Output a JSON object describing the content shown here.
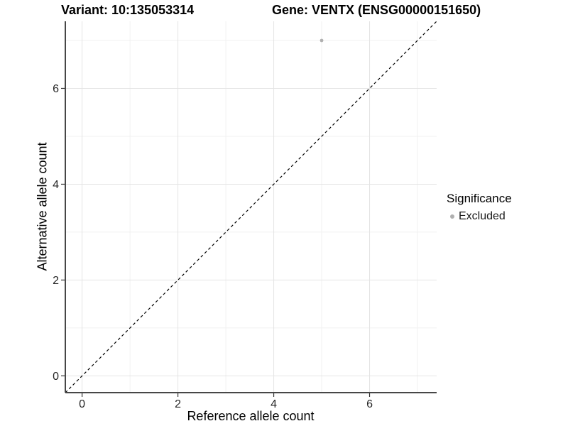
{
  "page": {
    "background": "#ffffff"
  },
  "chart_data": {
    "type": "scatter",
    "title_left": "Variant: 10:135053314",
    "title_right": "Gene: VENTX (ENSG00000151650)",
    "xlabel": "Reference allele count",
    "ylabel": "Alternative allele count",
    "xlim": [
      -0.35,
      7.4
    ],
    "ylim": [
      -0.35,
      7.4
    ],
    "xticks": [
      0,
      2,
      4,
      6
    ],
    "yticks": [
      0,
      2,
      4,
      6
    ],
    "x_minor": [
      1,
      3,
      5,
      7
    ],
    "y_minor": [
      1,
      3,
      5,
      7
    ],
    "grid": "major and minor, light gray on white",
    "points": [
      {
        "x": 5,
        "y": 7,
        "significance": "Excluded"
      }
    ],
    "reference_line": {
      "type": "identity y=x",
      "style": "dashed",
      "color": "#000000"
    },
    "legend": {
      "title": "Significance",
      "position": "right",
      "entries": [
        {
          "label": "Excluded",
          "color": "#b0b0b0"
        }
      ]
    },
    "colors": {
      "excluded_point": "#b0b0b0",
      "grid_major": "#e4e4e4",
      "grid_minor": "#f1f1f1",
      "axis_line": "#474747",
      "tick_mark": "#333333",
      "tick_label": "#262626"
    }
  }
}
